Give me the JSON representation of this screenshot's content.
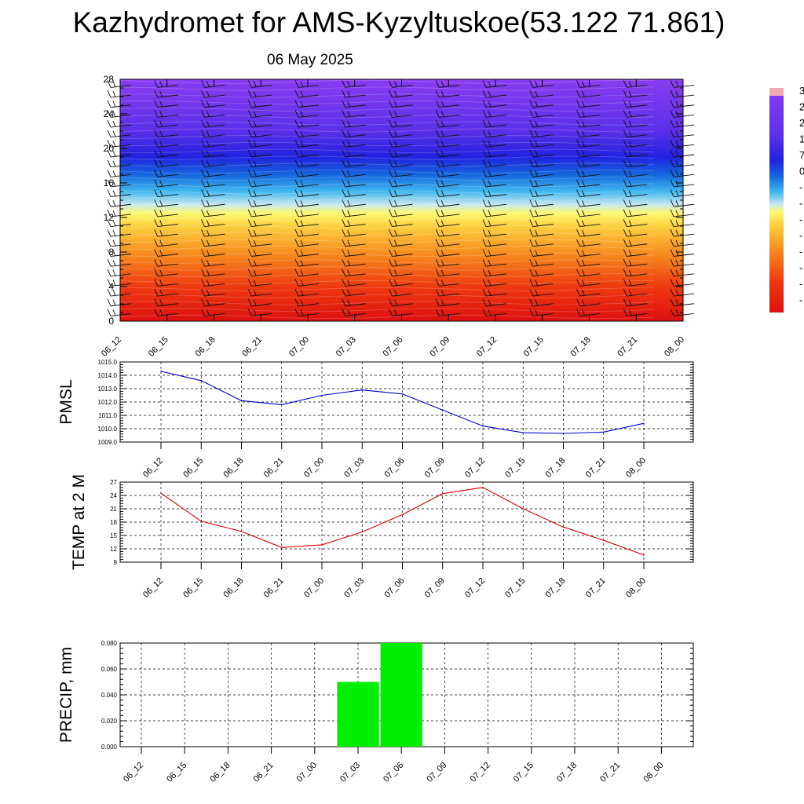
{
  "header": {
    "title": "Kazhydromet for AMS-Kyzyltuskoe(53.122 71.861)",
    "date": "06 May 2025"
  },
  "colors": {
    "pmsl_line": "#0000cc",
    "temp_line": "#dd0000",
    "precip_bar": "#00ee00",
    "gridline": "#000000"
  },
  "colorbar": {
    "labels": [
      "3",
      "2",
      "2",
      "1",
      "7",
      "0",
      "-",
      "-",
      "-",
      "-",
      "-",
      "-",
      "-",
      "-"
    ]
  },
  "chart_data": [
    {
      "type": "heatmap",
      "name": "cross-section",
      "xticks": [
        "06_12",
        "06_15",
        "06_18",
        "06_21",
        "07_00",
        "07_03",
        "07_06",
        "07_09",
        "07_12",
        "07_15",
        "07_18",
        "07_21",
        "08_00"
      ],
      "yticks": [
        0,
        4,
        8,
        12,
        16,
        20,
        24,
        28
      ],
      "ylim": [
        0,
        28
      ],
      "color_stops": [
        {
          "y": 0,
          "color": "#dd1010"
        },
        {
          "y": 4,
          "color": "#ee3a10"
        },
        {
          "y": 8,
          "color": "#f79020"
        },
        {
          "y": 11,
          "color": "#fcd040"
        },
        {
          "y": 12.5,
          "color": "#fff870"
        },
        {
          "y": 13.5,
          "color": "#c8e8f0"
        },
        {
          "y": 15,
          "color": "#40b8ee"
        },
        {
          "y": 17,
          "color": "#1565dd"
        },
        {
          "y": 19,
          "color": "#2222e0"
        },
        {
          "y": 22,
          "color": "#5a30e8"
        },
        {
          "y": 28,
          "color": "#8a3cf0"
        }
      ],
      "wind_barbs": true
    },
    {
      "type": "line",
      "name": "pmsl",
      "ylabel": "PMSL",
      "categories": [
        "06_12",
        "06_15",
        "06_18",
        "06_21",
        "07_00",
        "07_03",
        "07_06",
        "07_09",
        "07_12",
        "07_15",
        "07_18",
        "07_21",
        "08_00"
      ],
      "values": [
        1014.3,
        1013.6,
        1012.1,
        1011.8,
        1012.5,
        1012.9,
        1012.6,
        1011.4,
        1010.2,
        1009.7,
        1009.65,
        1009.75,
        1010.4
      ],
      "ylim": [
        1009.0,
        1015.0
      ],
      "yticks": [
        "1009.0",
        "1010.0",
        "1011.0",
        "1012.0",
        "1013.0",
        "1014.0",
        "1015.0"
      ],
      "grid": true
    },
    {
      "type": "line",
      "name": "temp",
      "ylabel": "TEMP at 2 M",
      "categories": [
        "06_12",
        "06_15",
        "06_18",
        "06_21",
        "07_00",
        "07_03",
        "07_06",
        "07_09",
        "07_12",
        "07_15",
        "07_18",
        "07_21",
        "08_00"
      ],
      "values": [
        24.5,
        18.2,
        15.9,
        12.3,
        12.9,
        15.8,
        19.7,
        24.4,
        25.8,
        21.0,
        16.9,
        13.9,
        10.6
      ],
      "ylim": [
        9,
        27
      ],
      "yticks": [
        "9",
        "12",
        "15",
        "18",
        "21",
        "24",
        "27"
      ],
      "grid": true
    },
    {
      "type": "bar",
      "name": "precip",
      "ylabel": "PRECIP, mm",
      "categories": [
        "06_12",
        "06_15",
        "06_18",
        "06_21",
        "07_00",
        "07_03",
        "07_06",
        "07_09",
        "07_12",
        "07_15",
        "07_18",
        "07_21",
        "08_00"
      ],
      "values": [
        0,
        0,
        0,
        0,
        0,
        0.05,
        0.08,
        0,
        0,
        0,
        0,
        0,
        0
      ],
      "ylim": [
        0,
        0.08
      ],
      "yticks": [
        "0.000",
        "0.020",
        "0.040",
        "0.060",
        "0.080"
      ],
      "grid": true
    }
  ]
}
